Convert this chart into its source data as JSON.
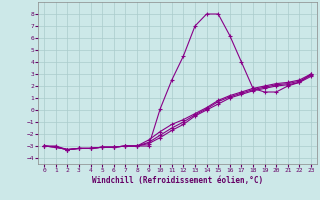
{
  "xlabel": "Windchill (Refroidissement éolien,°C)",
  "xlim": [
    -0.5,
    23.5
  ],
  "ylim": [
    -4.5,
    9.0
  ],
  "yticks": [
    -4,
    -3,
    -2,
    -1,
    0,
    1,
    2,
    3,
    4,
    5,
    6,
    7,
    8
  ],
  "xticks": [
    0,
    1,
    2,
    3,
    4,
    5,
    6,
    7,
    8,
    9,
    10,
    11,
    12,
    13,
    14,
    15,
    16,
    17,
    18,
    19,
    20,
    21,
    22,
    23
  ],
  "bg_color": "#cce8e8",
  "grid_color": "#aacccc",
  "line_color": "#880088",
  "line1_x": [
    0,
    1,
    2,
    3,
    4,
    5,
    6,
    7,
    8,
    9,
    10,
    11,
    12,
    13,
    14,
    15,
    16,
    17,
    18,
    19,
    20,
    21,
    22,
    23
  ],
  "line1_y": [
    -3.0,
    -3.0,
    -3.3,
    -3.2,
    -3.2,
    -3.1,
    -3.1,
    -3.0,
    -3.0,
    -3.0,
    0.1,
    2.5,
    4.5,
    7.0,
    8.0,
    8.0,
    6.2,
    4.0,
    1.8,
    1.5,
    1.5,
    2.0,
    2.3,
    3.0
  ],
  "line2_x": [
    0,
    1,
    2,
    3,
    4,
    5,
    6,
    7,
    8,
    9,
    10,
    11,
    12,
    13,
    14,
    15,
    16,
    17,
    18,
    19,
    20,
    21,
    22,
    23
  ],
  "line2_y": [
    -3.0,
    -3.1,
    -3.3,
    -3.2,
    -3.2,
    -3.1,
    -3.1,
    -3.0,
    -3.0,
    -2.5,
    -1.8,
    -1.2,
    -0.8,
    -0.3,
    0.2,
    0.8,
    1.2,
    1.5,
    1.8,
    2.0,
    2.2,
    2.3,
    2.5,
    3.0
  ],
  "line3_x": [
    0,
    1,
    2,
    3,
    4,
    5,
    6,
    7,
    8,
    9,
    10,
    11,
    12,
    13,
    14,
    15,
    16,
    17,
    18,
    19,
    20,
    21,
    22,
    23
  ],
  "line3_y": [
    -3.0,
    -3.1,
    -3.3,
    -3.2,
    -3.2,
    -3.1,
    -3.1,
    -3.0,
    -3.0,
    -2.7,
    -2.1,
    -1.5,
    -1.0,
    -0.4,
    0.1,
    0.7,
    1.1,
    1.4,
    1.7,
    1.9,
    2.1,
    2.2,
    2.4,
    2.9
  ],
  "line4_x": [
    0,
    1,
    2,
    3,
    4,
    5,
    6,
    7,
    8,
    9,
    10,
    11,
    12,
    13,
    14,
    15,
    16,
    17,
    18,
    19,
    20,
    21,
    22,
    23
  ],
  "line4_y": [
    -3.0,
    -3.1,
    -3.3,
    -3.2,
    -3.2,
    -3.1,
    -3.1,
    -3.0,
    -3.0,
    -2.8,
    -2.3,
    -1.7,
    -1.2,
    -0.5,
    0.0,
    0.5,
    1.0,
    1.3,
    1.6,
    1.8,
    2.0,
    2.1,
    2.3,
    2.8
  ]
}
